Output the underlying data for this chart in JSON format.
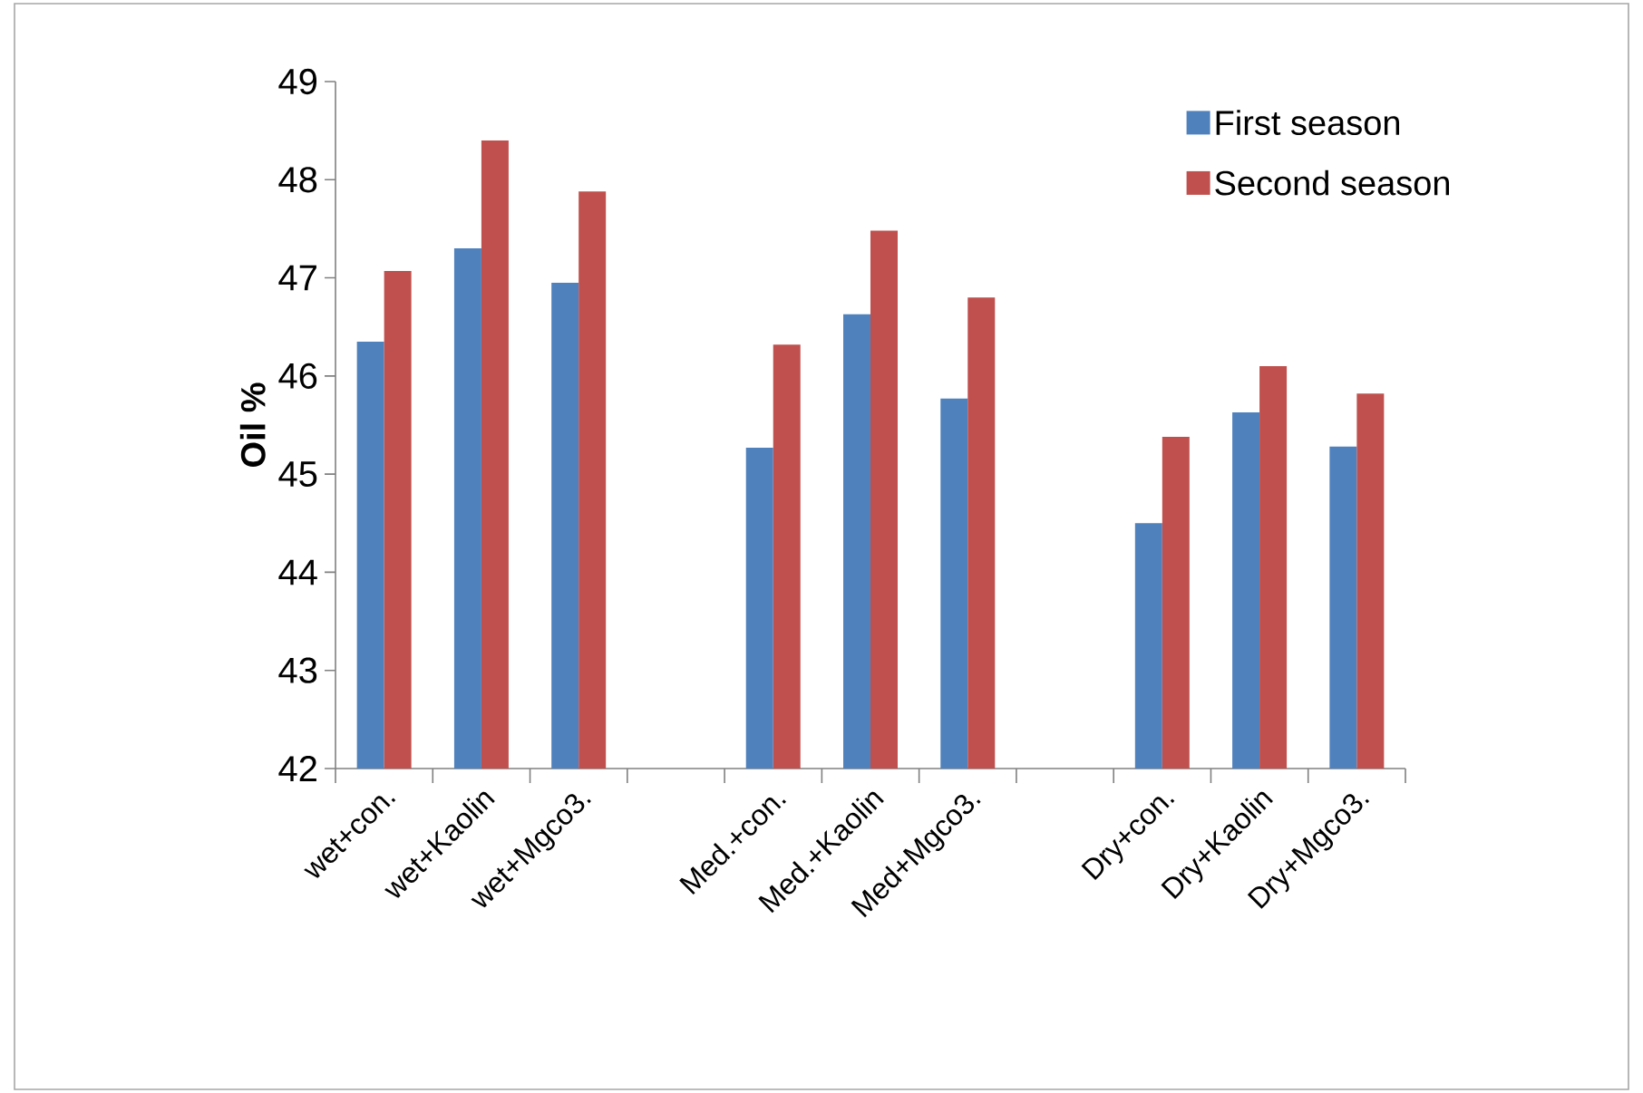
{
  "chart_data": {
    "type": "bar",
    "ylabel": "Oil %",
    "categories": [
      "wet+con.",
      "wet+Kaolin",
      "wet+Mgco3.",
      null,
      "Med.+con.",
      "Med.+Kaolin",
      "Med+Mgco3.",
      null,
      "Dry+con.",
      "Dry+Kaolin",
      "Dry+Mgco3."
    ],
    "series": [
      {
        "name": "First season",
        "color": "#4f81bd",
        "values": [
          46.35,
          47.3,
          46.95,
          null,
          45.27,
          46.63,
          45.77,
          null,
          44.5,
          45.63,
          45.28
        ]
      },
      {
        "name": "Second season",
        "color": "#c0504d",
        "values": [
          47.07,
          48.4,
          47.88,
          null,
          46.32,
          47.48,
          46.8,
          null,
          45.38,
          46.1,
          45.82
        ]
      }
    ],
    "ylim": [
      42,
      49
    ],
    "yticks": [
      42,
      43,
      44,
      45,
      46,
      47,
      48,
      49
    ],
    "legend": "top right"
  }
}
